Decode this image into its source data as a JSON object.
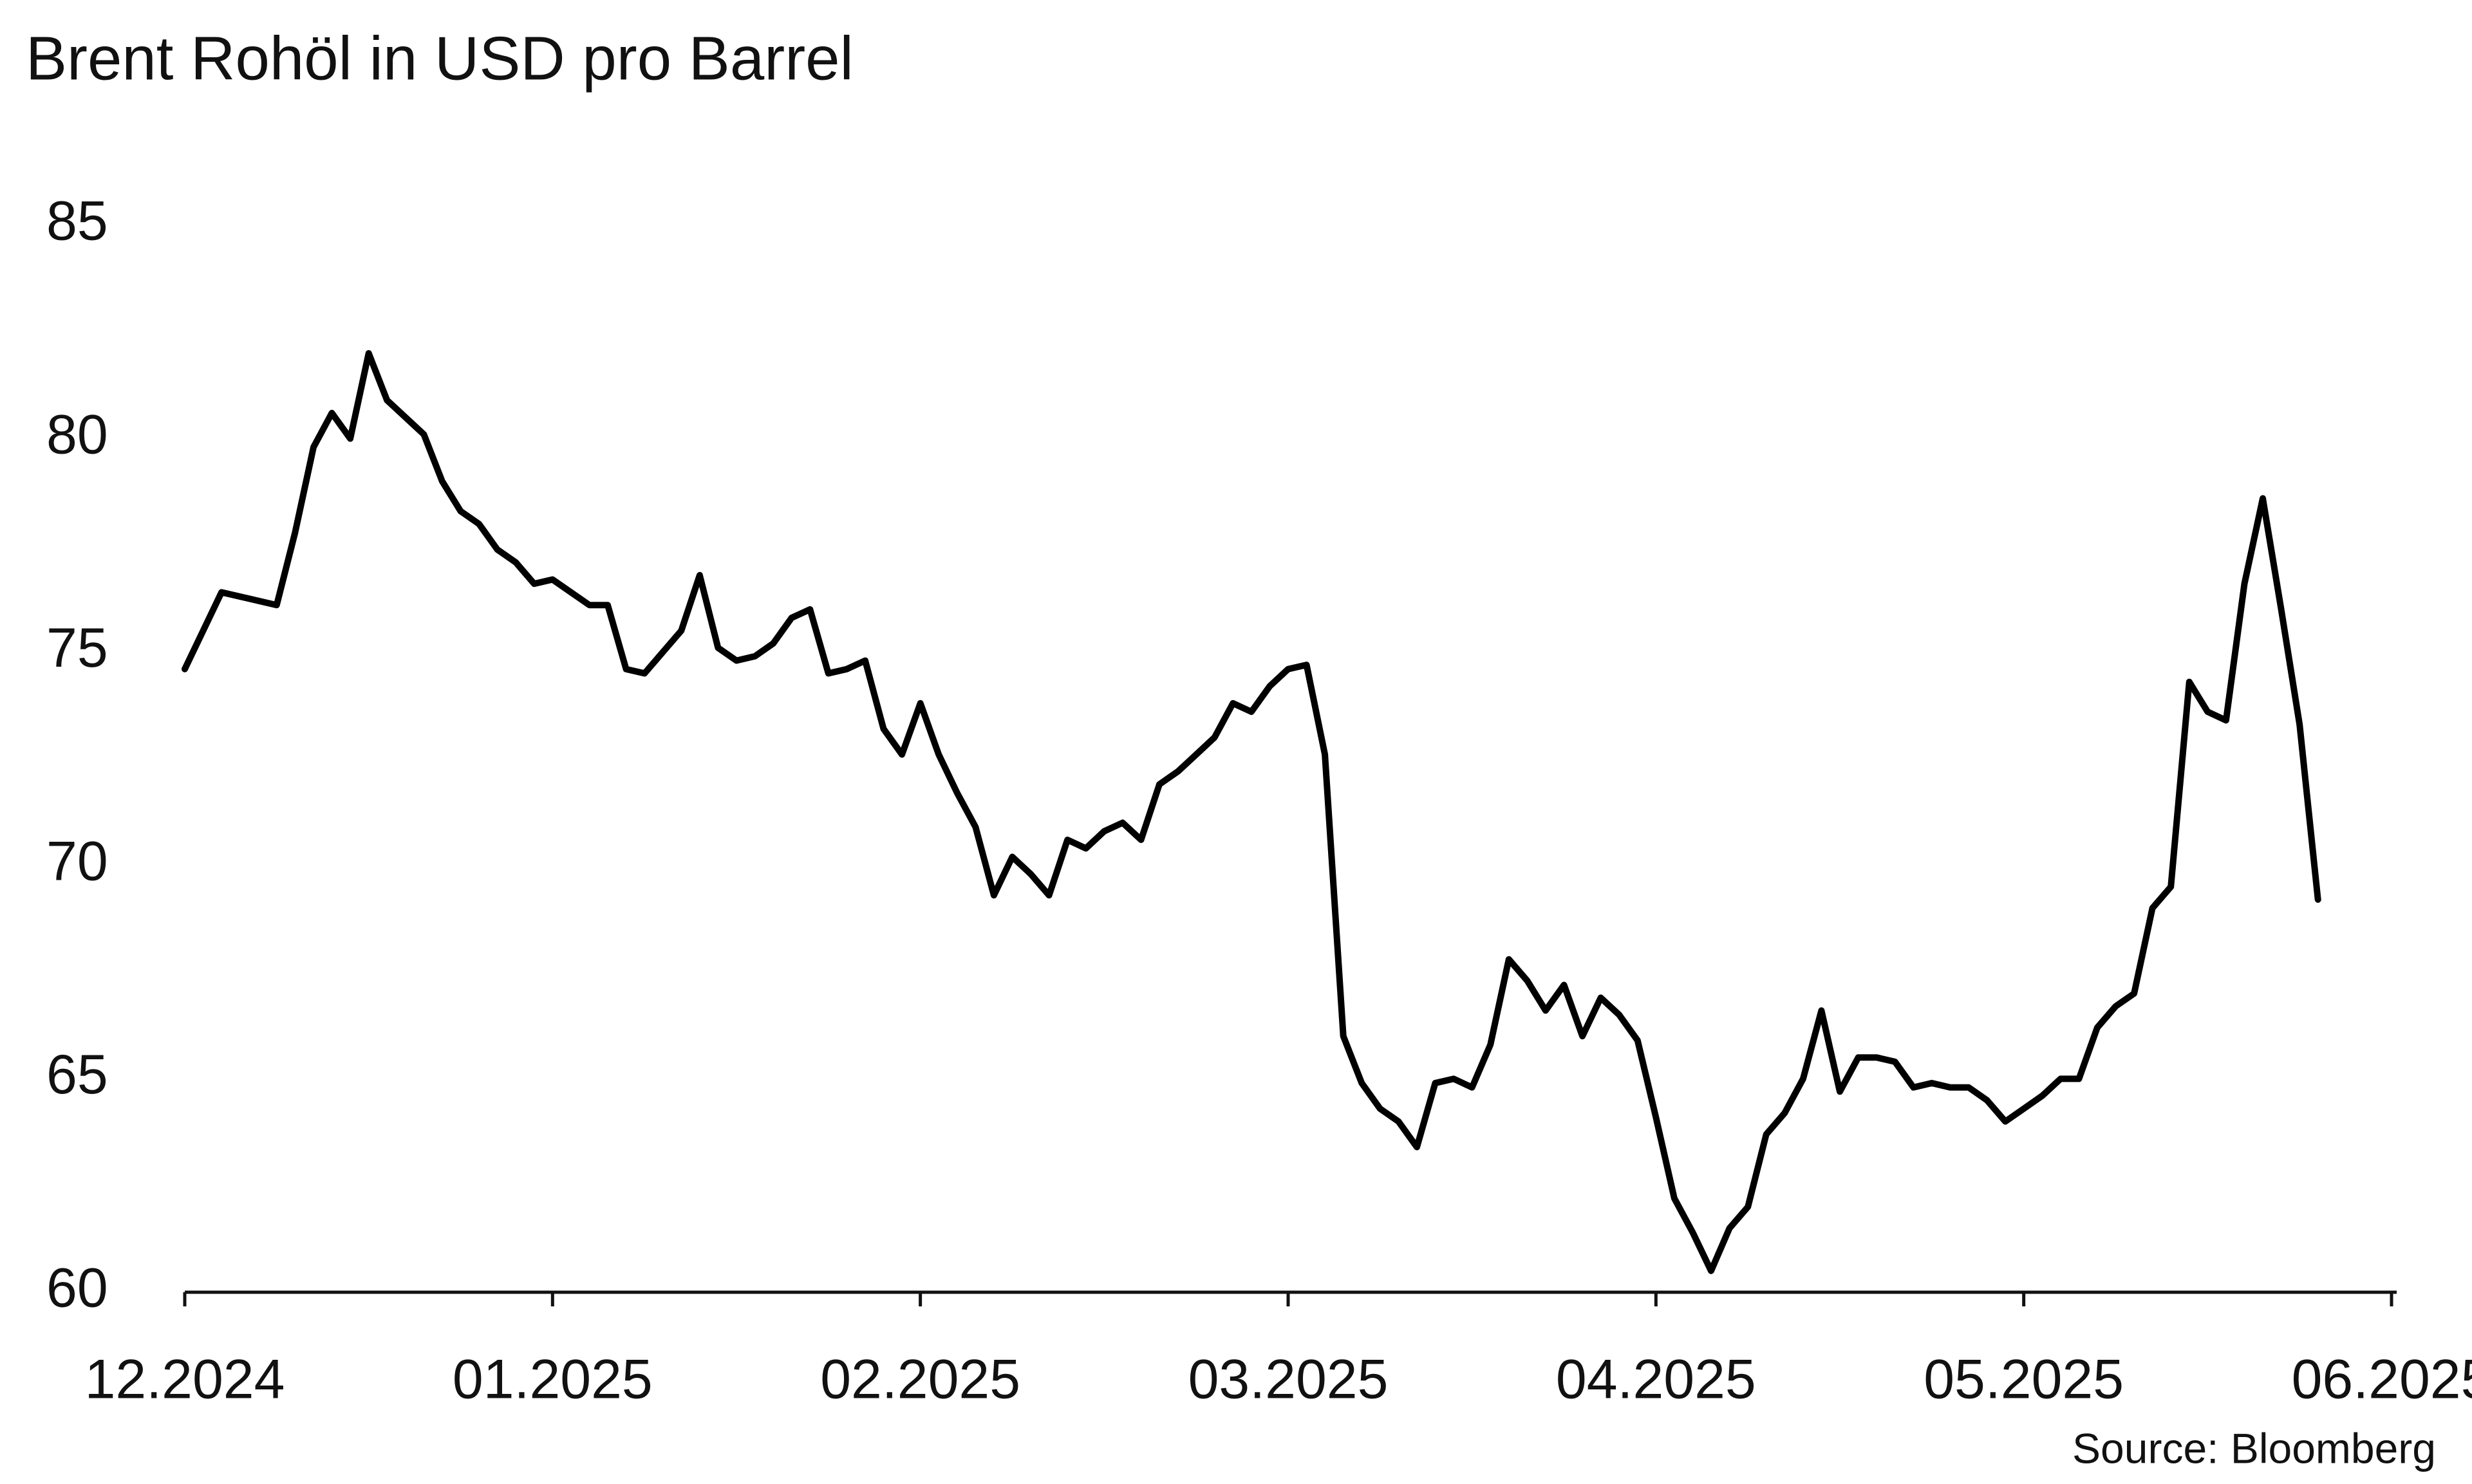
{
  "chart_data": {
    "type": "line",
    "title": "Brent Rohöl in USD pro Barrel",
    "source": "Source: Bloomberg",
    "categories": [
      "12.2024",
      null,
      null,
      null,
      null,
      null,
      null,
      null,
      null,
      null,
      null,
      null,
      null,
      null,
      null,
      null,
      null,
      null,
      null,
      null,
      "01.2025",
      null,
      null,
      null,
      null,
      null,
      null,
      null,
      null,
      null,
      null,
      null,
      null,
      null,
      null,
      null,
      null,
      null,
      null,
      null,
      "02.2025",
      null,
      null,
      null,
      null,
      null,
      null,
      null,
      null,
      null,
      null,
      null,
      null,
      null,
      null,
      null,
      null,
      null,
      null,
      null,
      "03.2025",
      null,
      null,
      null,
      null,
      null,
      null,
      null,
      null,
      null,
      null,
      null,
      null,
      null,
      null,
      null,
      null,
      null,
      null,
      null,
      "04.2025",
      null,
      null,
      null,
      null,
      null,
      null,
      null,
      null,
      null,
      null,
      null,
      null,
      null,
      null,
      null,
      null,
      null,
      null,
      null,
      "05.2025",
      null,
      null,
      null,
      null,
      null,
      null,
      null,
      null,
      null,
      null,
      null,
      null,
      null,
      null,
      null,
      null,
      null,
      null,
      null,
      "06.2025"
    ],
    "values": [
      74.6,
      75.5,
      76.4,
      76.3,
      76.2,
      76.1,
      77.8,
      79.8,
      80.6,
      80.0,
      82.0,
      80.9,
      80.5,
      80.1,
      79.0,
      78.3,
      78.0,
      77.4,
      77.1,
      76.6,
      76.7,
      76.4,
      76.1,
      76.1,
      74.6,
      74.5,
      75.0,
      75.5,
      76.8,
      75.1,
      74.8,
      74.9,
      75.2,
      75.8,
      76.0,
      74.5,
      74.6,
      74.8,
      73.2,
      72.6,
      73.8,
      72.6,
      71.7,
      70.9,
      69.3,
      70.2,
      69.8,
      69.3,
      70.6,
      70.4,
      70.8,
      71.0,
      70.6,
      71.9,
      72.2,
      72.6,
      73.0,
      73.8,
      73.6,
      74.2,
      74.6,
      74.7,
      72.6,
      66.0,
      64.9,
      64.3,
      64.0,
      63.4,
      64.9,
      65.0,
      64.8,
      65.8,
      67.8,
      67.3,
      66.6,
      67.2,
      66.0,
      66.9,
      66.5,
      65.9,
      64.1,
      62.2,
      61.4,
      60.5,
      61.5,
      62.0,
      63.7,
      64.2,
      65.0,
      66.6,
      64.7,
      65.5,
      65.5,
      65.4,
      64.8,
      64.9,
      64.8,
      64.8,
      64.5,
      64.0,
      64.3,
      64.6,
      65.0,
      65.0,
      66.2,
      66.7,
      67.0,
      69.0,
      69.5,
      74.3,
      73.6,
      73.4,
      76.6,
      78.6,
      76.0,
      73.3,
      69.2,
      null,
      null,
      null,
      null
    ],
    "color": "#000000",
    "ylim": [
      60,
      85
    ],
    "yticks": [
      60,
      65,
      70,
      75,
      80,
      85
    ],
    "grid": false
  }
}
